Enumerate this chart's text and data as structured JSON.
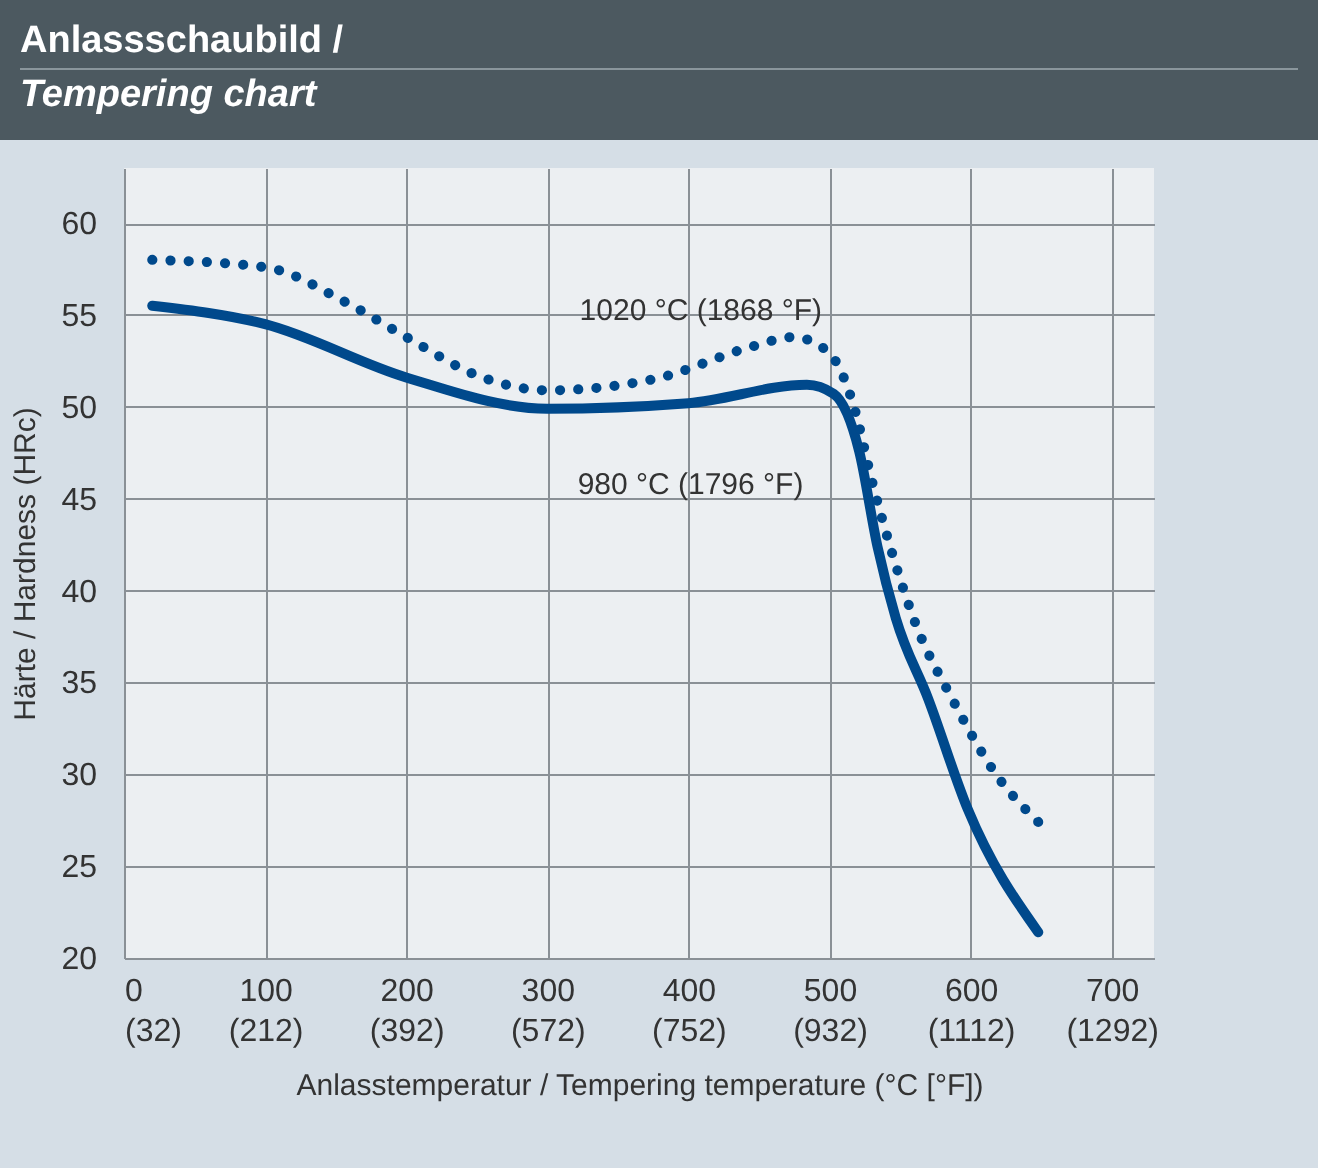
{
  "chart_data": {
    "type": "line",
    "title": "Anlassschaubild / Tempering chart",
    "xlabel": "Anlasstemperatur / Tempering temperature (°C [°F])",
    "ylabel": "Härte / Hardness (HRc)",
    "xlim": [
      0,
      730
    ],
    "ylim": [
      20,
      63
    ],
    "xticks": [
      0,
      100,
      200,
      300,
      400,
      500,
      600,
      700
    ],
    "x2lim": [
      32,
      1346
    ],
    "x2ticks": [
      {
        "value": 32,
        "label": "(32)"
      },
      {
        "value": 212,
        "label": "(212)"
      },
      {
        "value": 392,
        "label": "(392)"
      },
      {
        "value": 572,
        "label": "(572)"
      },
      {
        "value": 752,
        "label": "(752)"
      },
      {
        "value": 932,
        "label": "(932)"
      },
      {
        "value": 1112,
        "label": "(1112)"
      },
      {
        "value": 1292,
        "label": "(1292)"
      }
    ],
    "yticks": [
      20,
      25,
      30,
      35,
      40,
      45,
      50,
      55,
      60
    ],
    "grid": true,
    "marker": "none",
    "series": [
      {
        "color": "#00498c",
        "line_style": "solid",
        "x": [
          20,
          100,
          200,
          300,
          400,
          484,
          503,
          521,
          534,
          547,
          570,
          598,
          648
        ],
        "values": [
          55.5,
          54.5,
          51.6,
          49.9,
          50.2,
          51.2,
          50.7,
          47.6,
          42.4,
          38.5,
          34.1,
          28.1,
          21.4
        ]
      },
      {
        "color": "#00498c",
        "line_style": "dotted",
        "x": [
          20,
          100,
          157,
          200,
          254,
          300,
          375,
          446,
          474,
          499,
          517,
          531,
          543,
          561,
          587,
          618,
          648
        ],
        "values": [
          58.0,
          57.6,
          55.7,
          53.8,
          51.6,
          50.9,
          51.5,
          53.3,
          53.8,
          53.0,
          50.1,
          45.7,
          42.4,
          38.2,
          34.1,
          30.0,
          27.4
        ]
      }
    ],
    "annotations": [
      "1020 °C (1868 °F)",
      "980 °C (1796 °F)"
    ]
  }
}
